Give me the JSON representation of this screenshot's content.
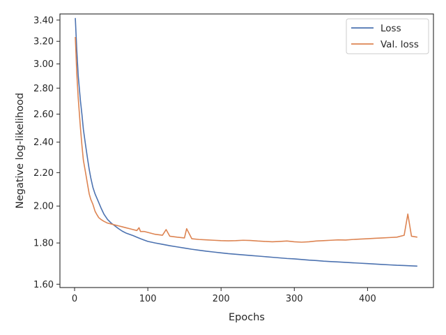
{
  "chart_data": {
    "type": "line",
    "xlabel": "Epochs",
    "ylabel": "Negative log-likelihood",
    "yscale": "log",
    "xlim": [
      -20,
      490
    ],
    "ylim": [
      1.585,
      3.46
    ],
    "xticks": [
      0,
      100,
      200,
      300,
      400
    ],
    "xtick_labels": [
      "0",
      "100",
      "200",
      "300",
      "400"
    ],
    "yticks": [
      1.6,
      1.8,
      2.0,
      2.2,
      2.4,
      2.6,
      2.8,
      3.0,
      3.2,
      3.4
    ],
    "ytick_labels": [
      "1.60",
      "1.80",
      "2.00",
      "2.20",
      "2.40",
      "2.60",
      "2.80",
      "3.00",
      "3.20",
      "3.40"
    ],
    "grid": false,
    "legend_position": "top-right",
    "series": [
      {
        "name": "Loss",
        "color": "#4c72b0",
        "x": [
          1,
          3,
          5,
          8,
          10,
          12,
          15,
          18,
          20,
          22,
          25,
          28,
          30,
          33,
          36,
          40,
          45,
          50,
          55,
          60,
          65,
          70,
          75,
          80,
          85,
          90,
          95,
          100,
          110,
          120,
          130,
          140,
          150,
          160,
          170,
          180,
          190,
          200,
          210,
          220,
          230,
          240,
          250,
          260,
          270,
          280,
          290,
          300,
          310,
          320,
          330,
          340,
          350,
          360,
          370,
          380,
          390,
          400,
          410,
          420,
          430,
          440,
          450,
          460,
          468
        ],
        "y": [
          3.42,
          3.12,
          2.9,
          2.7,
          2.6,
          2.49,
          2.38,
          2.28,
          2.22,
          2.17,
          2.11,
          2.07,
          2.05,
          2.02,
          1.99,
          1.955,
          1.925,
          1.905,
          1.89,
          1.875,
          1.862,
          1.852,
          1.845,
          1.838,
          1.83,
          1.822,
          1.815,
          1.808,
          1.8,
          1.793,
          1.786,
          1.78,
          1.774,
          1.768,
          1.763,
          1.758,
          1.754,
          1.75,
          1.746,
          1.743,
          1.74,
          1.737,
          1.734,
          1.731,
          1.728,
          1.725,
          1.722,
          1.72,
          1.717,
          1.714,
          1.712,
          1.709,
          1.707,
          1.705,
          1.703,
          1.701,
          1.699,
          1.697,
          1.695,
          1.693,
          1.691,
          1.689,
          1.688,
          1.686,
          1.685
        ]
      },
      {
        "name": "Val. loss",
        "color": "#dd8452",
        "x": [
          1,
          3,
          5,
          8,
          10,
          12,
          15,
          18,
          20,
          22,
          25,
          28,
          30,
          33,
          36,
          40,
          45,
          50,
          55,
          60,
          65,
          70,
          75,
          80,
          85,
          88,
          90,
          95,
          100,
          110,
          120,
          125,
          130,
          140,
          150,
          153,
          160,
          170,
          180,
          190,
          200,
          210,
          220,
          230,
          240,
          250,
          260,
          270,
          280,
          290,
          300,
          310,
          320,
          330,
          340,
          350,
          360,
          370,
          380,
          390,
          400,
          410,
          420,
          430,
          440,
          450,
          455,
          460,
          468
        ],
        "y": [
          3.24,
          2.92,
          2.72,
          2.5,
          2.38,
          2.28,
          2.2,
          2.12,
          2.07,
          2.04,
          2.01,
          1.97,
          1.955,
          1.935,
          1.925,
          1.915,
          1.905,
          1.9,
          1.895,
          1.89,
          1.885,
          1.88,
          1.875,
          1.87,
          1.865,
          1.88,
          1.86,
          1.86,
          1.855,
          1.845,
          1.84,
          1.87,
          1.835,
          1.83,
          1.826,
          1.875,
          1.822,
          1.818,
          1.816,
          1.814,
          1.812,
          1.811,
          1.812,
          1.814,
          1.813,
          1.81,
          1.808,
          1.806,
          1.808,
          1.81,
          1.806,
          1.804,
          1.806,
          1.81,
          1.812,
          1.814,
          1.816,
          1.815,
          1.818,
          1.82,
          1.822,
          1.824,
          1.826,
          1.828,
          1.83,
          1.84,
          1.955,
          1.835,
          1.83
        ]
      }
    ]
  }
}
